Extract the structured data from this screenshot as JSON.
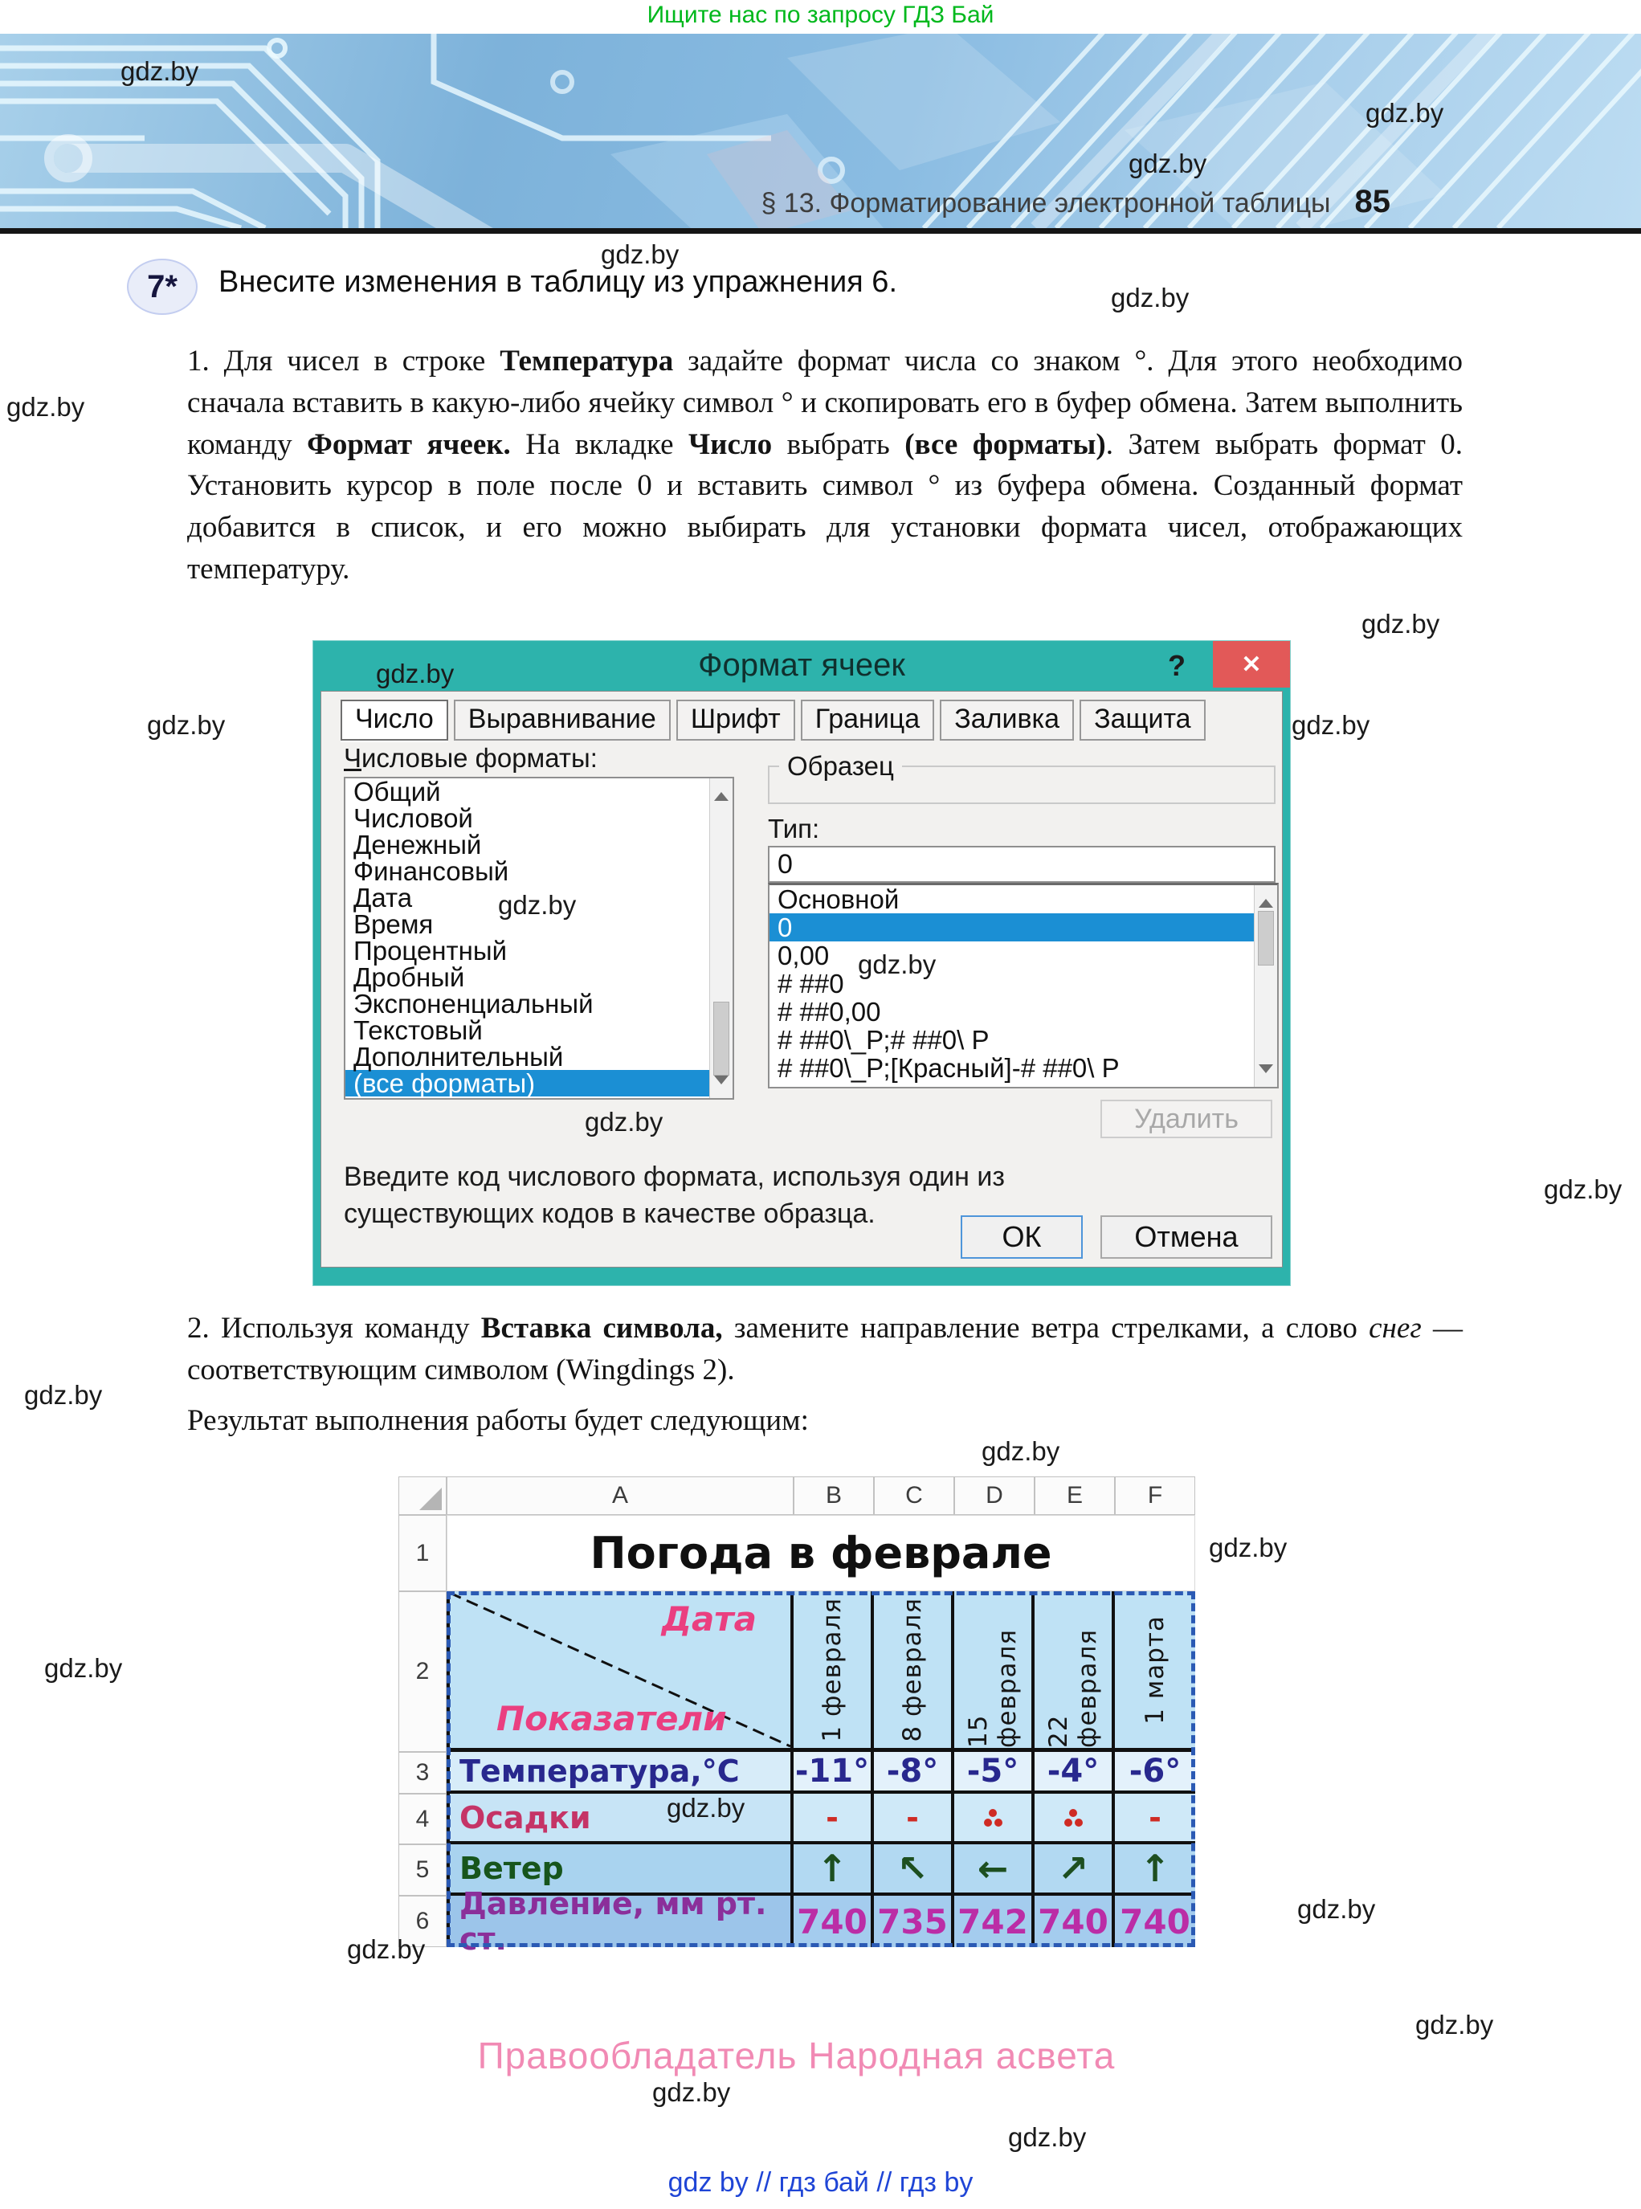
{
  "watermark_text": "gdz.by",
  "top_banner": {
    "promo_line": "Ищите нас по запросу ГДЗ Бай",
    "section_title": "§ 13. Форматирование электронной таблицы",
    "page_number": "85"
  },
  "exercise": {
    "number": "7*",
    "intro": "Внесите изменения в таблицу из упражнения 6."
  },
  "paragraph1": [
    {
      "t": "1. Для чисел в строке "
    },
    {
      "t": "Температура",
      "b": true
    },
    {
      "t": " задайте формат числа со знаком °. Для этого необходимо сначала вставить в какую-либо ячейку символ ° и скопировать его в буфер обмена. Затем выполнить команду "
    },
    {
      "t": "Формат ячеек.",
      "b": true
    },
    {
      "t": " На вкладке "
    },
    {
      "t": "Число",
      "b": true
    },
    {
      "t": " выбрать "
    },
    {
      "t": "(все форматы)",
      "b": true
    },
    {
      "t": ". Затем выбрать формат 0. Установить курсор в поле после 0 и вставить символ ° из буфера обмена. Созданный формат добавится в список, и его можно выбирать для установки формата чисел, отображающих температуру."
    }
  ],
  "paragraph2": [
    {
      "t": "2. Используя команду "
    },
    {
      "t": "Вставка символа,",
      "b": true
    },
    {
      "t": " замените направление ветра стрелками, а слово "
    },
    {
      "t": "снег",
      "i": true
    },
    {
      "t": " — соответствующим символом (Wingdings 2)."
    }
  ],
  "result_line": "Результат выполнения работы будет следующим:",
  "dialog": {
    "title": "Формат ячеек",
    "help_icon": "?",
    "close_icon": "✕",
    "tabs": [
      {
        "label": "Число",
        "active": true
      },
      {
        "label": "Выравнивание"
      },
      {
        "label": "Шрифт"
      },
      {
        "label": "Граница"
      },
      {
        "label": "Заливка"
      },
      {
        "label": "Защита"
      }
    ],
    "number_formats_label": [
      {
        "t": "Ч",
        "u": true
      },
      {
        "t": "исловые форматы:"
      }
    ],
    "categories": [
      "Общий",
      "Числовой",
      "Денежный",
      "Финансовый",
      "Дата",
      "Время",
      "Процентный",
      "Дробный",
      "Экспоненциальный",
      "Текстовый",
      "Дополнительный",
      "(все форматы)"
    ],
    "selected_category": "(все форматы)",
    "sample_label": "Образец",
    "type_label": "Тип:",
    "type_value": "0",
    "format_codes": [
      "Основной",
      "0",
      "0,00",
      "# ##0",
      "# ##0,00",
      "# ##0\\_Р;# ##0\\ Р",
      "# ##0\\_Р;[Красный]-# ##0\\ Р"
    ],
    "selected_format": "0",
    "delete_button": "Удалить",
    "hint": "Введите код числового формата, используя один из существующих кодов в качестве образца.",
    "ok_button": "ОК",
    "cancel_button": "Отмена"
  },
  "spreadsheet": {
    "column_letters": [
      "A",
      "B",
      "C",
      "D",
      "E",
      "F"
    ],
    "row_numbers": [
      "1",
      "2",
      "3",
      "4",
      "5",
      "6"
    ],
    "title": "Погода в феврале",
    "corner": {
      "top_label": "Дата",
      "bottom_label": "Показатели"
    },
    "date_headers": [
      "1 февраля",
      "8 февраля",
      "15 февраля",
      "22 февраля",
      "1 марта"
    ],
    "data_rows": [
      {
        "name": "temperature",
        "label": "Температура,°С",
        "values": [
          "-11°",
          "-8°",
          "-5°",
          "-4°",
          "-6°"
        ]
      },
      {
        "name": "precipitation",
        "label": "Осадки",
        "values": [
          "-",
          "-",
          "⁂",
          "⁂",
          "-"
        ]
      },
      {
        "name": "wind",
        "label": "Ветер",
        "values": [
          "↑",
          "↖",
          "←",
          "↗",
          "↑"
        ]
      },
      {
        "name": "pressure",
        "label": "Давление, мм рт. ст.",
        "values": [
          "740",
          "735",
          "742",
          "740",
          "740"
        ]
      }
    ]
  },
  "footer": {
    "copyright": "Правообладатель Народная асвета",
    "links_line": "gdz by  //  гдз бай  //  гдз by"
  },
  "colors": {
    "dialog_teal": "#2db3ac",
    "close_red": "#e25958",
    "selection_blue": "#1b8fd4",
    "sheet_selection_dash": "#2b5ab4",
    "promo_green": "#00b81c",
    "links_blue": "#1f45d6",
    "footer_pink": "#f18ab4",
    "label_pink": "#ea3f80",
    "temperature_navy": "#28288e",
    "wind_green": "#1d4f20",
    "pressure_magenta": "#bb2da6",
    "precip_red": "#cf2b24"
  }
}
